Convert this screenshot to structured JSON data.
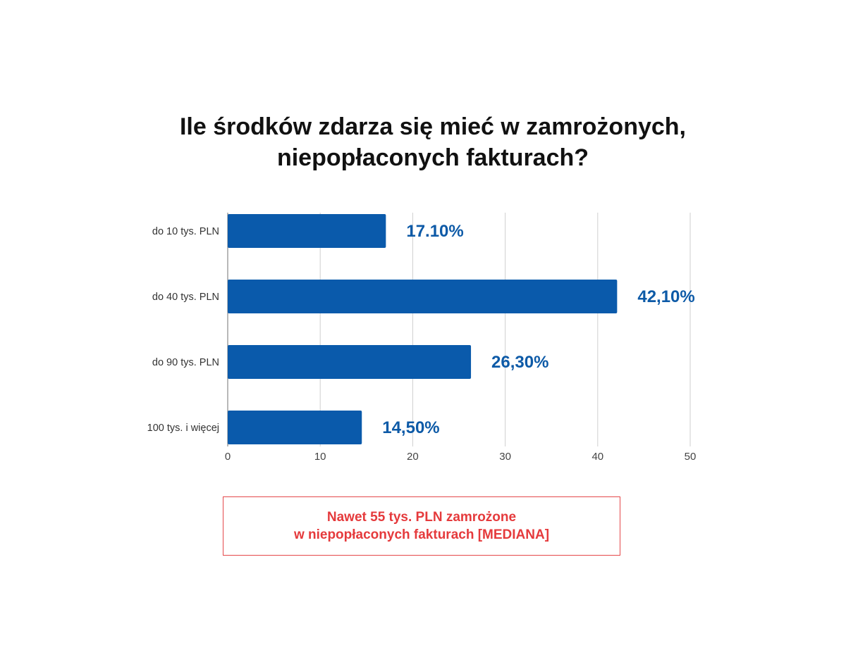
{
  "chart_data": {
    "type": "bar",
    "orientation": "horizontal",
    "title": "Ile środków zdarza się mieć w zamrożonych, niepopłaconych fakturach?",
    "title_lines": [
      "Ile środków zdarza się mieć w zamrożonych,",
      "niepopłaconych fakturach?"
    ],
    "categories": [
      "do 10 tys. PLN",
      "do 40 tys. PLN",
      "do 90 tys. PLN",
      "100 tys. i więcej"
    ],
    "values": [
      17.1,
      42.1,
      26.3,
      14.5
    ],
    "data_labels": [
      "17.10%",
      "42,10%",
      "26,30%",
      "14,50%"
    ],
    "xlim": [
      0,
      50
    ],
    "x_ticks": [
      "0",
      "10",
      "20",
      "30",
      "40",
      "50"
    ],
    "grid": true,
    "bar_color": "#0a5aab",
    "label_color": "#0d5aa7",
    "grid_color": "#cfcfcf"
  },
  "callout": {
    "line1": "Nawet 55 tys. PLN zamrożone",
    "line2": "w niepopłaconych fakturach [MEDIANA]",
    "color": "#e53a3c"
  }
}
